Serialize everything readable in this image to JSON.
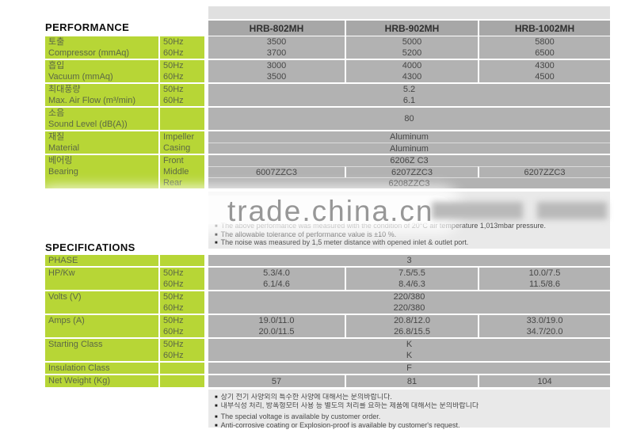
{
  "watermark": {
    "text": "trade.china.cn"
  },
  "performance": {
    "title": "PERFORMANCE",
    "models": [
      "HRB-802MH",
      "HRB-902MH",
      "HRB-1002MH"
    ],
    "groups": [
      {
        "label_kr": "토출",
        "label_en": "Compressor (mmAq)",
        "freq": [
          "50Hz",
          "60Hz"
        ],
        "rows": [
          {
            "cells": [
              "3500",
              "5000",
              "5800"
            ]
          },
          {
            "cells": [
              "3700",
              "5200",
              "6500"
            ]
          }
        ]
      },
      {
        "label_kr": "흡입",
        "label_en": "Vacuum (mmAq)",
        "freq": [
          "50Hz",
          "60Hz"
        ],
        "rows": [
          {
            "cells": [
              "3000",
              "4000",
              "4300"
            ]
          },
          {
            "cells": [
              "3500",
              "4300",
              "4500"
            ]
          }
        ]
      },
      {
        "label_kr": "최대풍량",
        "label_en": "Max. Air Flow (m³/min)",
        "freq": [
          "50Hz",
          "60Hz"
        ],
        "rows": [
          {
            "span": "5.2"
          },
          {
            "span": "6.1"
          }
        ]
      },
      {
        "label_kr": "소음",
        "label_en": "Sound Level (dB(A))",
        "freq": [
          "",
          ""
        ],
        "rows": [
          {
            "span": "80"
          }
        ]
      },
      {
        "label_kr": "재질",
        "label_en": "Material",
        "freq": [
          "Impeller",
          "Casing"
        ],
        "rows": [
          {
            "span": "Aluminum"
          },
          {
            "span": "Aluminum"
          }
        ]
      },
      {
        "label_kr": "베어링",
        "label_en": "Bearing",
        "freq": [
          "Front",
          "Middle",
          "Rear"
        ],
        "rows": [
          {
            "span": "6206Z C3"
          },
          {
            "cells": [
              "6007ZZC3",
              "6207ZZC3",
              "6207ZZC3"
            ]
          },
          {
            "span": "6208ZZC3"
          }
        ]
      }
    ],
    "notes": [
      "The above performance was measured with the condition of 20°C air temperature 1,013mbar pressure.",
      "The allowable tolerance of performance value is ±10 %.",
      "The noise was measured by 1,5 meter distance with opened inlet & outlet port."
    ]
  },
  "specifications": {
    "title": "SPECIFICATIONS",
    "groups": [
      {
        "label": "PHASE",
        "freq": [
          "",
          ""
        ],
        "rows": [
          {
            "span": "3"
          }
        ]
      },
      {
        "label": "HP/Kw",
        "freq": [
          "50Hz",
          "60Hz"
        ],
        "rows": [
          {
            "cells": [
              "5.3/4.0",
              "7.5/5.5",
              "10.0/7.5"
            ]
          },
          {
            "cells": [
              "6.1/4.6",
              "8.4/6.3",
              "11.5/8.6"
            ]
          }
        ]
      },
      {
        "label": "Volts (V)",
        "freq": [
          "50Hz",
          "60Hz"
        ],
        "rows": [
          {
            "span": "220/380"
          },
          {
            "span": "220/380"
          }
        ]
      },
      {
        "label": "Amps (A)",
        "freq": [
          "50Hz",
          "60Hz"
        ],
        "rows": [
          {
            "cells": [
              "19.0/11.0",
              "20.8/12.0",
              "33.0/19.0"
            ]
          },
          {
            "cells": [
              "20.0/11.5",
              "26.8/15.5",
              "34.7/20.0"
            ]
          }
        ]
      },
      {
        "label": "Starting Class",
        "freq": [
          "50Hz",
          "60Hz"
        ],
        "rows": [
          {
            "span": "K"
          },
          {
            "span": "K"
          }
        ]
      },
      {
        "label": "Insulation Class",
        "freq": [
          "",
          ""
        ],
        "rows": [
          {
            "span": "F"
          }
        ]
      },
      {
        "label": "Net Weight (Kg)",
        "freq": [
          "",
          ""
        ],
        "rows": [
          {
            "cells": [
              "57",
              "81",
              "104"
            ]
          }
        ]
      }
    ],
    "notes_kr": [
      "상기 전기 사양외의 특수한 사양에 대해서는 문의바랍니다.",
      "내부식성 처리, 방폭형모터 사용 등 별도의 처리를 요하는 제품에 대해서는 문의바랍니다"
    ],
    "notes_en": [
      "The special voltage is available by customer order.",
      "Anti-corrosive coating or Explosion-proof is available by customer's request."
    ]
  }
}
